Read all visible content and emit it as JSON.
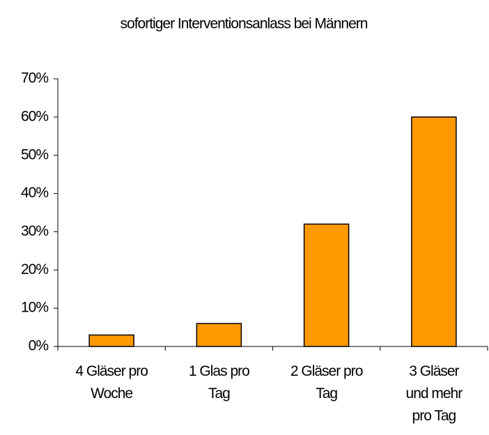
{
  "chart_data": {
    "type": "bar",
    "title": "sofortiger Interventionsanlass bei Männern",
    "categories": [
      "4 Gläser pro\nWoche",
      "1 Glas pro\nTag",
      "2 Gläser pro\nTag",
      "3 Gläser\nund mehr\npro Tag"
    ],
    "values": [
      3,
      6,
      32,
      60
    ],
    "color": "#ff9900",
    "ylim": [
      0,
      70
    ],
    "yticks": [
      {
        "value": 0,
        "label": "0%"
      },
      {
        "value": 10,
        "label": "10%"
      },
      {
        "value": 20,
        "label": "20%"
      },
      {
        "value": 30,
        "label": "30%"
      },
      {
        "value": 40,
        "label": "40%"
      },
      {
        "value": 50,
        "label": "50%"
      },
      {
        "value": 60,
        "label": "60%"
      },
      {
        "value": 70,
        "label": "70%"
      }
    ],
    "grid": false
  }
}
